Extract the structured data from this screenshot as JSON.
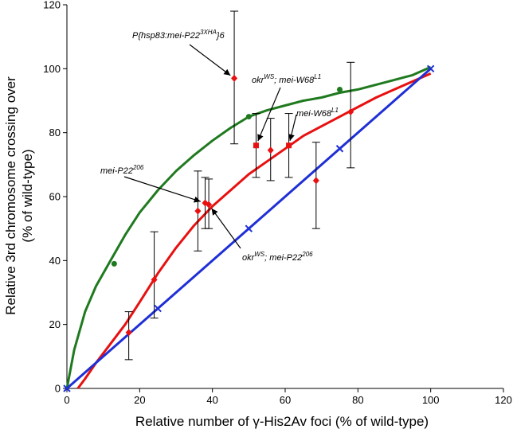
{
  "chart_data": {
    "type": "scatter",
    "xlabel": "Relative number of γ-His2Av foci (% of wild-type)",
    "ylabel_line1": "Relative 3rd chromosome crossing over",
    "ylabel_line2": "(% of wild-type)",
    "xlim": [
      0,
      120
    ],
    "ylim": [
      0,
      120
    ],
    "xticks": [
      0,
      20,
      40,
      60,
      80,
      100,
      120
    ],
    "yticks": [
      0,
      20,
      40,
      60,
      80,
      100,
      120
    ],
    "grid": false,
    "colors": {
      "green": "#1f7a1f",
      "red": "#e81010",
      "blue": "#1f2fd6",
      "errorbar": "#000000"
    },
    "series": [
      {
        "marker": "diamond",
        "color": "#e81010",
        "points": [
          {
            "x": 17,
            "y": 17.5,
            "ylo": 9,
            "yhi": 24
          },
          {
            "x": 24,
            "y": 34,
            "ylo": 22,
            "yhi": 49
          },
          {
            "x": 36,
            "y": 55.5,
            "ylo": 43,
            "yhi": 68
          },
          {
            "x": 38,
            "y": 58,
            "ylo": 50,
            "yhi": 66
          },
          {
            "x": 39,
            "y": 57.5,
            "ylo": 50,
            "yhi": 65.5
          },
          {
            "x": 46,
            "y": 97,
            "ylo": 76.5,
            "yhi": 118
          },
          {
            "x": 56,
            "y": 74.5,
            "ylo": 65,
            "yhi": 84.5
          },
          {
            "x": 68.5,
            "y": 65,
            "ylo": 50,
            "yhi": 77
          },
          {
            "x": 78,
            "y": 86.5,
            "ylo": 69,
            "yhi": 102
          }
        ]
      },
      {
        "marker": "square",
        "color": "#e81010",
        "points": [
          {
            "x": 52,
            "y": 76,
            "ylo": 66,
            "yhi": 86
          },
          {
            "x": 61,
            "y": 76,
            "ylo": 66,
            "yhi": 86
          }
        ]
      },
      {
        "marker": "circle",
        "color": "#1f7a1f",
        "points": [
          {
            "x": 13,
            "y": 39
          },
          {
            "x": 50,
            "y": 85
          },
          {
            "x": 75,
            "y": 93.5
          }
        ]
      },
      {
        "marker": "x",
        "color": "#1f2fd6",
        "points": [
          {
            "x": 0,
            "y": 0
          },
          {
            "x": 25,
            "y": 25
          },
          {
            "x": 50,
            "y": 50
          },
          {
            "x": 75,
            "y": 75
          },
          {
            "x": 100,
            "y": 100
          }
        ]
      }
    ],
    "curves": [
      {
        "color": "#1f7a1f",
        "points": [
          [
            0,
            0
          ],
          [
            2,
            12
          ],
          [
            5,
            24
          ],
          [
            8,
            32
          ],
          [
            12,
            40
          ],
          [
            16,
            48
          ],
          [
            20,
            55
          ],
          [
            25,
            62
          ],
          [
            30,
            68
          ],
          [
            35,
            73
          ],
          [
            40,
            77.5
          ],
          [
            45,
            81.5
          ],
          [
            50,
            85
          ],
          [
            55,
            87
          ],
          [
            60,
            88.5
          ],
          [
            65,
            90
          ],
          [
            70,
            91
          ],
          [
            75,
            92.5
          ],
          [
            80,
            93.5
          ],
          [
            85,
            95
          ],
          [
            90,
            96.5
          ],
          [
            95,
            98
          ],
          [
            100,
            100.5
          ]
        ]
      },
      {
        "color": "#e81010",
        "points": [
          [
            3,
            0
          ],
          [
            5,
            3
          ],
          [
            8,
            8
          ],
          [
            12,
            14
          ],
          [
            16,
            20
          ],
          [
            20,
            27
          ],
          [
            25,
            36
          ],
          [
            30,
            44
          ],
          [
            35,
            51
          ],
          [
            40,
            57
          ],
          [
            45,
            62
          ],
          [
            50,
            67
          ],
          [
            55,
            71
          ],
          [
            60,
            75
          ],
          [
            65,
            79
          ],
          [
            70,
            82
          ],
          [
            75,
            85
          ],
          [
            80,
            88
          ],
          [
            85,
            91
          ],
          [
            90,
            93.5
          ],
          [
            95,
            96
          ],
          [
            100,
            98.5
          ]
        ]
      },
      {
        "color": "#1f2fd6",
        "points": [
          [
            0,
            0
          ],
          [
            100,
            100
          ]
        ]
      }
    ],
    "annotations": [
      {
        "base": "P{hsp83:mei-P22",
        "sup": "3XHA",
        "tail": "}6",
        "arrow_to": [
          46,
          97
        ]
      },
      {
        "base": "okr",
        "sup": "WS",
        "mid": "; mei-W68",
        "sup2": "L1",
        "arrow_to": [
          52,
          76
        ]
      },
      {
        "base": "mei-W68",
        "sup": "L1",
        "arrow_to": [
          61,
          76
        ]
      },
      {
        "base": "mei-P22",
        "sup": "206",
        "arrow_to": [
          38,
          58
        ]
      },
      {
        "base": "okr",
        "sup": "WS",
        "mid": "; mei-P22",
        "sup2": "206",
        "arrow_to": [
          39,
          57.5
        ]
      }
    ]
  }
}
